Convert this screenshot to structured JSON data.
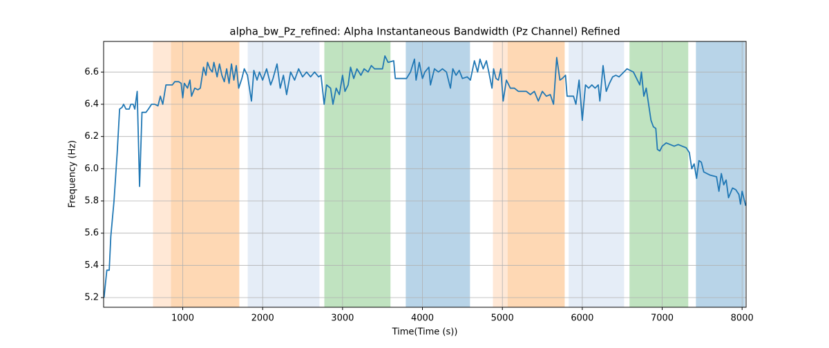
{
  "chart_data": {
    "type": "line",
    "title": "alpha_bw_Pz_refined: Alpha Instantaneous Bandwidth (Pz Channel) Refined",
    "xlabel": "Time(Time (s))",
    "ylabel": "Frequency (Hz)",
    "xlim": [
      10,
      8050
    ],
    "ylim": [
      5.14,
      6.79
    ],
    "xticks": [
      1000,
      2000,
      3000,
      4000,
      5000,
      6000,
      7000,
      8000
    ],
    "yticks": [
      5.2,
      5.4,
      5.6,
      5.8,
      {
        "value": 6,
        "label": "6.0"
      },
      6.2,
      6.4,
      6.6
    ],
    "grid": true,
    "spans": [
      {
        "x0": 628,
        "x1": 853,
        "color": "#ffe8d6"
      },
      {
        "x0": 853,
        "x1": 1708,
        "color": "#fed8b4"
      },
      {
        "x0": 1813,
        "x1": 2711,
        "color": "#e5edf7"
      },
      {
        "x0": 2772,
        "x1": 3600,
        "color": "#c0e3c0"
      },
      {
        "x0": 3791,
        "x1": 4595,
        "color": "#b8d4e8"
      },
      {
        "x0": 4882,
        "x1": 5065,
        "color": "#ffe8d6"
      },
      {
        "x0": 5065,
        "x1": 5780,
        "color": "#fed8b4"
      },
      {
        "x0": 5830,
        "x1": 6523,
        "color": "#e5edf7"
      },
      {
        "x0": 6591,
        "x1": 7326,
        "color": "#c0e3c0"
      },
      {
        "x0": 7422,
        "x1": 8036,
        "color": "#b8d4e8"
      }
    ],
    "color": "#1f77b4",
    "x": [
      15,
      50,
      80,
      100,
      140,
      180,
      210,
      240,
      260,
      290,
      330,
      350,
      380,
      400,
      430,
      460,
      490,
      540,
      570,
      610,
      650,
      690,
      720,
      750,
      790,
      830,
      870,
      900,
      950,
      980,
      1000,
      1020,
      1060,
      1090,
      1110,
      1150,
      1190,
      1220,
      1260,
      1290,
      1310,
      1340,
      1370,
      1390,
      1430,
      1460,
      1490,
      1520,
      1550,
      1580,
      1610,
      1640,
      1670,
      1700,
      1740,
      1770,
      1810,
      1860,
      1890,
      1930,
      1960,
      2000,
      2050,
      2100,
      2130,
      2180,
      2220,
      2260,
      2300,
      2350,
      2400,
      2450,
      2500,
      2550,
      2600,
      2650,
      2700,
      2730,
      2770,
      2800,
      2850,
      2880,
      2920,
      2960,
      3000,
      3030,
      3070,
      3100,
      3140,
      3180,
      3230,
      3270,
      3320,
      3360,
      3400,
      3450,
      3500,
      3530,
      3570,
      3640,
      3660,
      3800,
      3850,
      3900,
      3920,
      3960,
      4000,
      4030,
      4080,
      4100,
      4150,
      4200,
      4250,
      4300,
      4350,
      4380,
      4420,
      4460,
      4500,
      4560,
      4600,
      4650,
      4690,
      4720,
      4760,
      4800,
      4830,
      4870,
      4890,
      4920,
      4950,
      4980,
      5010,
      5050,
      5100,
      5150,
      5200,
      5300,
      5350,
      5400,
      5450,
      5500,
      5550,
      5600,
      5640,
      5680,
      5720,
      5750,
      5790,
      5810,
      5890,
      5920,
      5960,
      6000,
      6040,
      6080,
      6120,
      6160,
      6200,
      6220,
      6260,
      6300,
      6340,
      6380,
      6420,
      6460,
      6520,
      6560,
      6600,
      6640,
      6680,
      6720,
      6740,
      6770,
      6800,
      6830,
      6860,
      6890,
      6920,
      6940,
      6970,
      7000,
      7050,
      7100,
      7150,
      7200,
      7250,
      7300,
      7340,
      7370,
      7400,
      7430,
      7460,
      7490,
      7520,
      7600,
      7680,
      7710,
      7740,
      7770,
      7800,
      7830,
      7880,
      7920,
      7960,
      7980,
      8000,
      8030,
      8045
    ],
    "values": [
      5.2,
      5.37,
      5.37,
      5.58,
      5.8,
      6.1,
      6.37,
      6.38,
      6.4,
      6.37,
      6.37,
      6.4,
      6.4,
      6.37,
      6.48,
      5.89,
      6.35,
      6.35,
      6.37,
      6.4,
      6.4,
      6.39,
      6.45,
      6.4,
      6.52,
      6.52,
      6.52,
      6.54,
      6.54,
      6.53,
      6.44,
      6.53,
      6.5,
      6.55,
      6.45,
      6.5,
      6.49,
      6.5,
      6.63,
      6.58,
      6.66,
      6.62,
      6.6,
      6.66,
      6.57,
      6.65,
      6.58,
      6.54,
      6.62,
      6.53,
      6.65,
      6.55,
      6.64,
      6.5,
      6.56,
      6.62,
      6.58,
      6.42,
      6.61,
      6.55,
      6.6,
      6.55,
      6.62,
      6.52,
      6.56,
      6.65,
      6.5,
      6.58,
      6.46,
      6.6,
      6.55,
      6.62,
      6.57,
      6.6,
      6.57,
      6.6,
      6.57,
      6.58,
      6.4,
      6.52,
      6.5,
      6.4,
      6.5,
      6.46,
      6.58,
      6.48,
      6.52,
      6.63,
      6.56,
      6.62,
      6.58,
      6.62,
      6.6,
      6.64,
      6.62,
      6.62,
      6.62,
      6.7,
      6.66,
      6.67,
      6.56,
      6.56,
      6.6,
      6.68,
      6.55,
      6.66,
      6.56,
      6.6,
      6.63,
      6.52,
      6.62,
      6.6,
      6.62,
      6.6,
      6.5,
      6.62,
      6.58,
      6.61,
      6.56,
      6.57,
      6.55,
      6.67,
      6.6,
      6.68,
      6.62,
      6.67,
      6.6,
      6.5,
      6.62,
      6.56,
      6.55,
      6.62,
      6.42,
      6.55,
      6.5,
      6.5,
      6.48,
      6.48,
      6.46,
      6.48,
      6.42,
      6.48,
      6.45,
      6.46,
      6.4,
      6.69,
      6.55,
      6.56,
      6.58,
      6.45,
      6.45,
      6.4,
      6.55,
      6.3,
      6.52,
      6.5,
      6.52,
      6.5,
      6.52,
      6.42,
      6.64,
      6.48,
      6.53,
      6.57,
      6.58,
      6.57,
      6.6,
      6.62,
      6.61,
      6.6,
      6.56,
      6.52,
      6.6,
      6.45,
      6.5,
      6.4,
      6.3,
      6.26,
      6.25,
      6.12,
      6.11,
      6.14,
      6.16,
      6.15,
      6.14,
      6.15,
      6.14,
      6.13,
      6.1,
      6.0,
      6.03,
      5.94,
      6.05,
      6.04,
      5.98,
      5.96,
      5.95,
      5.86,
      5.97,
      5.9,
      5.93,
      5.82,
      5.88,
      5.87,
      5.84,
      5.78,
      5.86,
      5.8,
      5.77
    ]
  }
}
